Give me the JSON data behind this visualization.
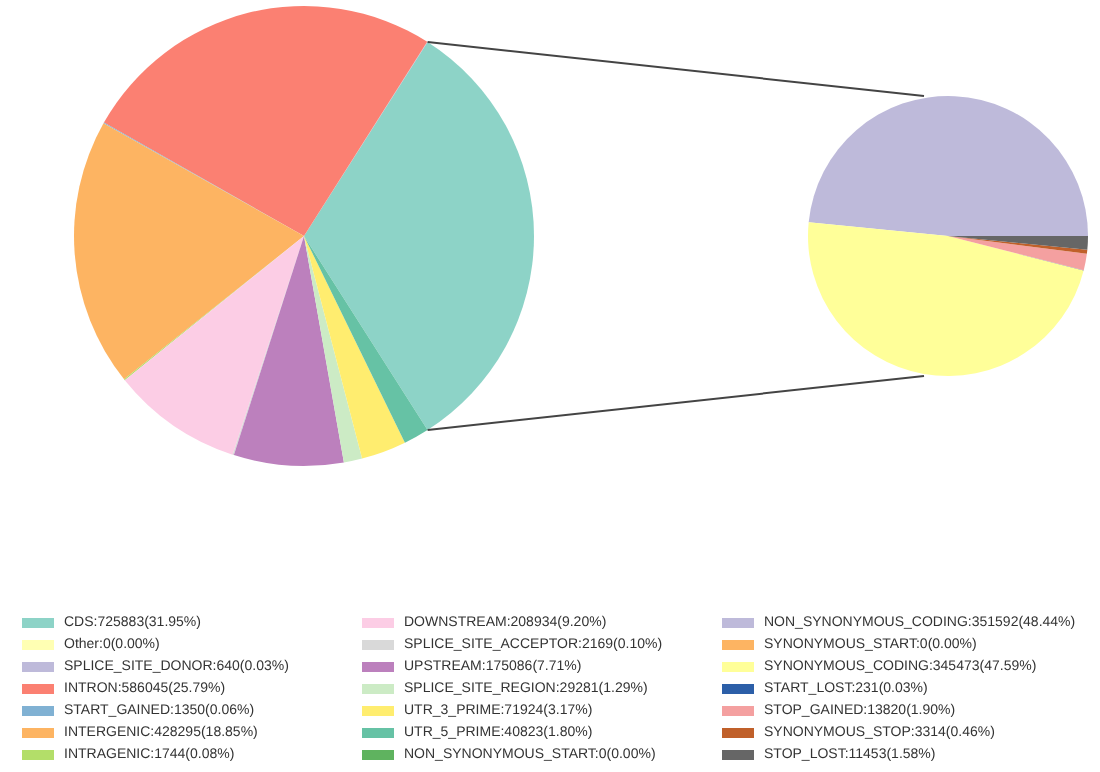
{
  "chart_data": [
    {
      "type": "pie",
      "legend": "bottom",
      "categories": [
        "CDS:725883(31.95%)",
        "Other:0(0.00%)",
        "SPLICE_SITE_DONOR:640(0.03%)",
        "INTRON:586045(25.79%)",
        "START_GAINED:1350(0.06%)",
        "INTERGENIC:428295(18.85%)",
        "INTRAGENIC:1744(0.08%)",
        "DOWNSTREAM:208934(9.20%)",
        "SPLICE_SITE_ACCEPTOR:2169(0.10%)",
        "UPSTREAM:175086(7.71%)",
        "SPLICE_SITE_REGION:29281(1.29%)",
        "UTR_3_PRIME:71924(3.17%)",
        "UTR_5_PRIME:40823(1.80%)",
        "NON_SYNONYMOUS_START:0(0.00%)"
      ],
      "values": [
        725883,
        0,
        640,
        586045,
        1350,
        428295,
        1744,
        208934,
        2169,
        175086,
        29281,
        71924,
        40823,
        0
      ],
      "colors": [
        "#8dd3c7",
        "#ffffb3",
        "#bebada",
        "#fb8072",
        "#80b1d3",
        "#fdb462",
        "#b3de69",
        "#fccde5",
        "#d9d9d9",
        "#bc80bd",
        "#ccebc5",
        "#ffed6f",
        "#66c2a5",
        "#5fb35f"
      ]
    },
    {
      "type": "pie",
      "legend": "bottom",
      "categories": [
        "NON_SYNONYMOUS_CODING:351592(48.44%)",
        "SYNONYMOUS_START:0(0.00%)",
        "SYNONYMOUS_CODING:345473(47.59%)",
        "START_LOST:231(0.03%)",
        "STOP_GAINED:13820(1.90%)",
        "SYNONYMOUS_STOP:3314(0.46%)",
        "STOP_LOST:11453(1.58%)"
      ],
      "values": [
        351592,
        0,
        345473,
        231,
        13820,
        3314,
        11453
      ],
      "colors": [
        "#bebada",
        "#fdb462",
        "#ffff99",
        "#2c5fa8",
        "#f4a0a0",
        "#c0602a",
        "#666666"
      ]
    }
  ]
}
